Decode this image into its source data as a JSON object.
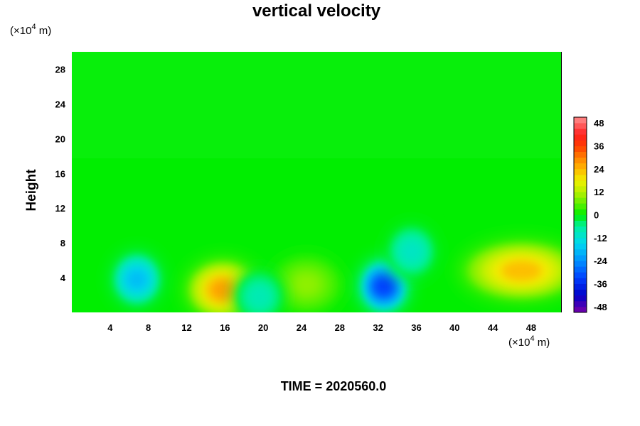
{
  "chart_data": {
    "type": "heatmap",
    "title": "vertical velocity",
    "ylabel": "Height",
    "y_unit_prefix": "(×10",
    "y_unit_exp": "4",
    "y_unit_suffix": " m)",
    "x_unit_prefix": "(×10",
    "x_unit_exp": "4",
    "x_unit_suffix": " m)",
    "xlim": [
      0,
      51.2
    ],
    "ylim": [
      0,
      30
    ],
    "x_ticks": [
      4,
      8,
      12,
      16,
      20,
      24,
      28,
      32,
      36,
      40,
      44,
      48
    ],
    "y_ticks": [
      4,
      8,
      12,
      16,
      20,
      24,
      28
    ],
    "colorbar": {
      "range": [
        -51,
        51
      ],
      "tick_values": [
        48,
        36,
        24,
        12,
        0,
        -12,
        -24,
        -36,
        -48
      ],
      "tick_labels": [
        "48",
        "36",
        "24",
        "12",
        "0",
        "-12",
        "-24",
        "-36",
        "-48"
      ]
    },
    "features": [
      {
        "x": 15.8,
        "y": 2.6,
        "value": 32
      },
      {
        "x": 47.0,
        "y": 4.8,
        "value": 28
      },
      {
        "x": 24.5,
        "y": 3.2,
        "value": 11
      },
      {
        "x": 32.6,
        "y": 3.0,
        "value": -40
      },
      {
        "x": 6.8,
        "y": 3.8,
        "value": -22
      },
      {
        "x": 19.6,
        "y": 1.8,
        "value": -10
      },
      {
        "x": 35.5,
        "y": 7.0,
        "value": -12
      }
    ],
    "footer": "TIME = 2020560.0"
  }
}
